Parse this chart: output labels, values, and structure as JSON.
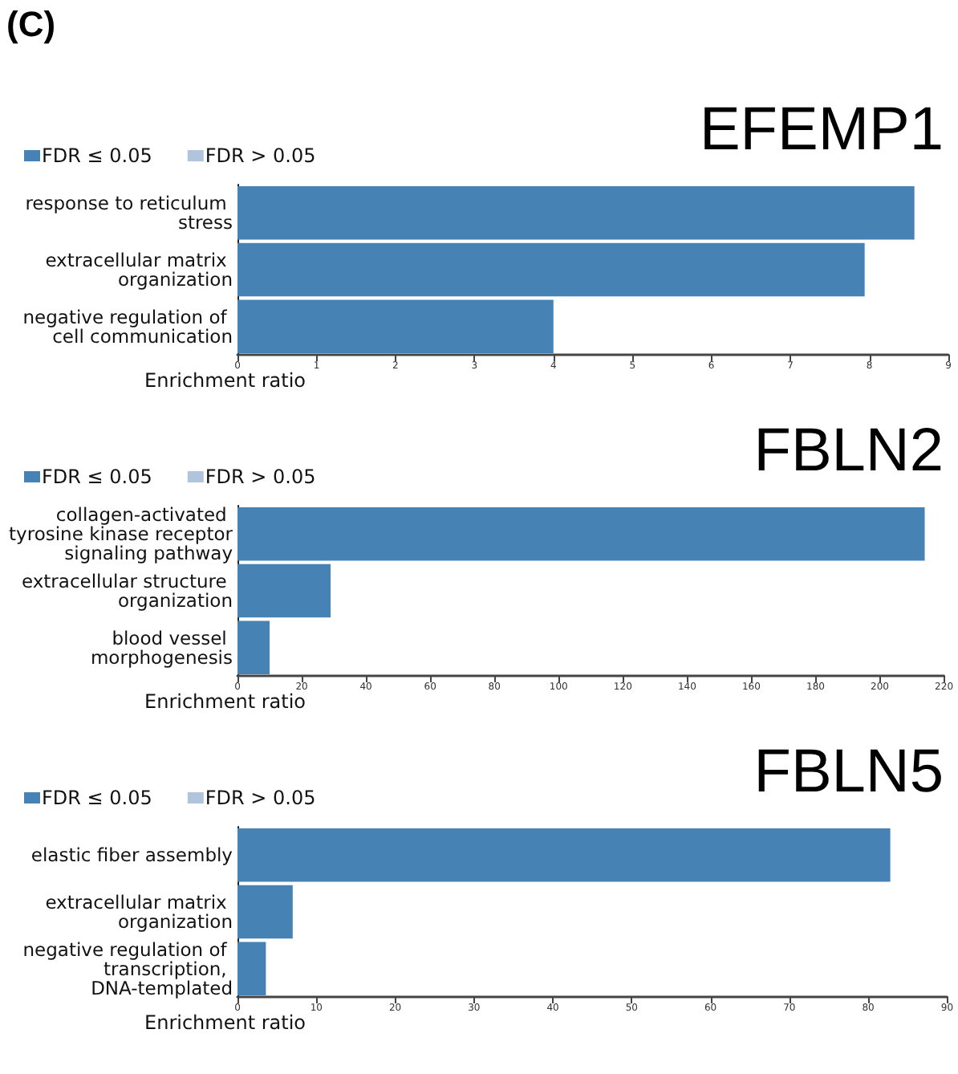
{
  "chart_data": [
    {
      "type": "bar",
      "orientation": "horizontal",
      "stacked": true,
      "title": "EFEMP1",
      "xlabel": "Enrichment ratio",
      "annotations": [
        "(C)"
      ],
      "legend": "top left",
      "grid": false,
      "categories": [
        "response to reticulum stress",
        "extracellular matrix organization",
        "negative regulation of cell communication"
      ],
      "series": [
        {
          "name": "FDR ≤ 0.05",
          "color": "#4682b4",
          "values": [
            8.57,
            7.94,
            4.0
          ]
        },
        {
          "name": "FDR > 0.05",
          "color": "#b0c4de",
          "values": [
            null,
            null,
            null
          ]
        }
      ],
      "xlim": [
        0,
        9
      ],
      "xticks": [
        0,
        1,
        2,
        3,
        4,
        5,
        6,
        7,
        8,
        9
      ]
    },
    {
      "type": "bar",
      "orientation": "horizontal",
      "stacked": true,
      "title": "FBLN2",
      "xlabel": "Enrichment ratio",
      "legend": "top left",
      "grid": false,
      "categories": [
        "collagen-activated tyrosine kinase receptor signaling pathway",
        "extracellular structure organization",
        "blood vessel morphogenesis"
      ],
      "series": [
        {
          "name": "FDR ≤ 0.05",
          "color": "#4682b4",
          "values": [
            214,
            29,
            10
          ]
        },
        {
          "name": "FDR > 0.05",
          "color": "#b0c4de",
          "values": [
            null,
            null,
            null
          ]
        }
      ],
      "xlim": [
        0,
        220
      ],
      "xticks": [
        0,
        20,
        40,
        60,
        80,
        100,
        120,
        140,
        160,
        180,
        200,
        220
      ]
    },
    {
      "type": "bar",
      "orientation": "horizontal",
      "stacked": true,
      "title": "FBLN5",
      "xlabel": "Enrichment ratio",
      "legend": "top left",
      "grid": false,
      "categories": [
        "elastic fiber assembly",
        "extracellular matrix organization",
        "negative regulation of transcription, DNA-templated"
      ],
      "series": [
        {
          "name": "FDR ≤ 0.05",
          "color": "#4682b4",
          "values": [
            82.8,
            7,
            3.6
          ]
        },
        {
          "name": "FDR > 0.05",
          "color": "#b0c4de",
          "values": [
            null,
            null,
            null
          ]
        }
      ],
      "xlim": [
        0,
        90
      ],
      "xticks": [
        0,
        10,
        20,
        30,
        40,
        50,
        60,
        70,
        80,
        90
      ]
    }
  ]
}
